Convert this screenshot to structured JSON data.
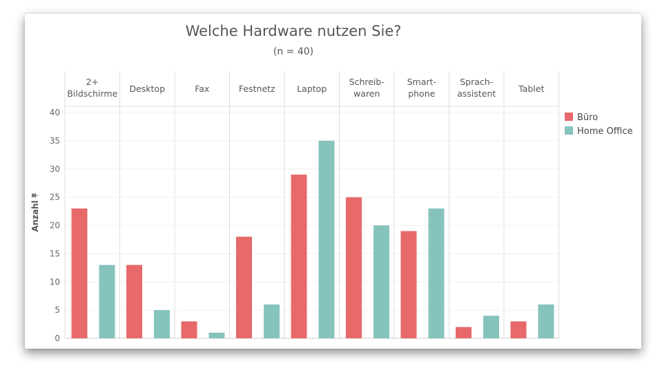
{
  "chart_data": {
    "type": "bar",
    "title": "Welche Hardware nutzen Sie?",
    "subtitle": "(n = 40)",
    "ylabel": "Anzahl",
    "ylim": [
      0,
      40
    ],
    "yticks": [
      0,
      5,
      10,
      15,
      20,
      25,
      30,
      35,
      40
    ],
    "categories": [
      "2+ Bildschirme",
      "Desktop",
      "Fax",
      "Festnetz",
      "Laptop",
      "Schreib- waren",
      "Smart- phone",
      "Sprach- assistent",
      "Tablet"
    ],
    "category_labels": [
      [
        "2+",
        "Bildschirme"
      ],
      [
        "Desktop"
      ],
      [
        "Fax"
      ],
      [
        "Festnetz"
      ],
      [
        "Laptop"
      ],
      [
        "Schreib-",
        "waren"
      ],
      [
        "Smart-",
        "phone"
      ],
      [
        "Sprach-",
        "assistent"
      ],
      [
        "Tablet"
      ]
    ],
    "series": [
      {
        "name": "Büro",
        "color": "#e8696a",
        "values": [
          23,
          13,
          3,
          18,
          29,
          25,
          19,
          2,
          3
        ]
      },
      {
        "name": "Home Office",
        "color": "#86c3bd",
        "values": [
          13,
          5,
          1,
          6,
          35,
          20,
          23,
          4,
          6
        ]
      }
    ],
    "legend_position": "right",
    "grid": true
  }
}
